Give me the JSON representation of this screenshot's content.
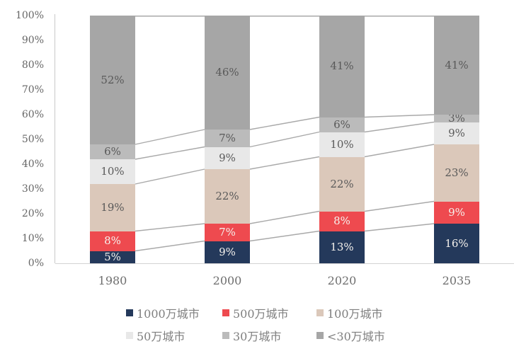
{
  "chart_data": {
    "type": "bar",
    "variant": "stacked-100-percent-column",
    "title": "",
    "xlabel": "",
    "ylabel": "",
    "categories": [
      "1980",
      "2000",
      "2020",
      "2035"
    ],
    "series": [
      {
        "name": "1000万城市",
        "color": "#24395B",
        "label_color": "#F5F2ED",
        "values": [
          5,
          9,
          13,
          16
        ]
      },
      {
        "name": "500万城市",
        "color": "#EE4A4F",
        "label_color": "#F5F2ED",
        "values": [
          8,
          7,
          8,
          9
        ]
      },
      {
        "name": "100万城市",
        "color": "#DBC8BA",
        "label_color": "#595959",
        "values": [
          19,
          22,
          22,
          23
        ]
      },
      {
        "name": "50万城市",
        "color": "#E8E8E8",
        "label_color": "#595959",
        "values": [
          10,
          9,
          10,
          9
        ]
      },
      {
        "name": "30万城市",
        "color": "#BBBBBB",
        "label_color": "#595959",
        "values": [
          6,
          7,
          6,
          3
        ]
      },
      {
        "name": "<30万城市",
        "color": "#A6A6A6",
        "label_color": "#595959",
        "values": [
          52,
          46,
          41,
          41
        ]
      }
    ],
    "data_label_suffix": "%",
    "yticks": [
      "0%",
      "10%",
      "20%",
      "30%",
      "40%",
      "50%",
      "60%",
      "70%",
      "80%",
      "90%",
      "100%"
    ],
    "ylim": [
      0,
      100
    ],
    "grid": false,
    "connector_lines": true,
    "connector_line_color": "#A9A9A9",
    "legend_position": "bottom",
    "legend_rows": 2
  },
  "axis": {
    "y_tick_color": "#666666",
    "x_tick_color": "#6e6e6e",
    "axis_line_color": "#c9c9c9"
  },
  "legend": {
    "text_color": "#7f7f7f"
  }
}
